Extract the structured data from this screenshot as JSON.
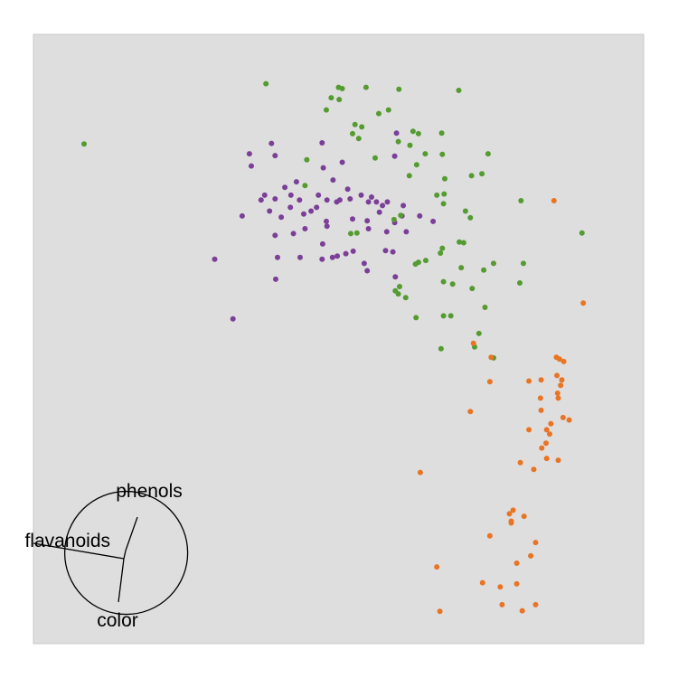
{
  "chart_data": {
    "type": "scatter",
    "title": "",
    "xlabel": "",
    "ylabel": "",
    "grid": false,
    "legend": "none",
    "xlim": [
      0,
      1
    ],
    "ylim": [
      0,
      1
    ],
    "background": "#dedede",
    "panel_border": "#c8c8c8",
    "series": [
      {
        "color": "#7b3f98",
        "points": [
          [
            0.39,
            0.821
          ],
          [
            0.396,
            0.801
          ],
          [
            0.354,
            0.804
          ],
          [
            0.473,
            0.822
          ],
          [
            0.357,
            0.784
          ],
          [
            0.592,
            0.8
          ],
          [
            0.595,
            0.838
          ],
          [
            0.506,
            0.79
          ],
          [
            0.475,
            0.781
          ],
          [
            0.491,
            0.761
          ],
          [
            0.431,
            0.758
          ],
          [
            0.412,
            0.749
          ],
          [
            0.422,
            0.736
          ],
          [
            0.467,
            0.736
          ],
          [
            0.481,
            0.728
          ],
          [
            0.379,
            0.736
          ],
          [
            0.396,
            0.73
          ],
          [
            0.342,
            0.702
          ],
          [
            0.373,
            0.728
          ],
          [
            0.436,
            0.728
          ],
          [
            0.502,
            0.728
          ],
          [
            0.519,
            0.73
          ],
          [
            0.537,
            0.736
          ],
          [
            0.515,
            0.746
          ],
          [
            0.554,
            0.733
          ],
          [
            0.562,
            0.725
          ],
          [
            0.58,
            0.725
          ],
          [
            0.606,
            0.719
          ],
          [
            0.572,
            0.719
          ],
          [
            0.549,
            0.725
          ],
          [
            0.497,
            0.725
          ],
          [
            0.464,
            0.716
          ],
          [
            0.455,
            0.71
          ],
          [
            0.421,
            0.716
          ],
          [
            0.387,
            0.71
          ],
          [
            0.406,
            0.7
          ],
          [
            0.443,
            0.705
          ],
          [
            0.48,
            0.693
          ],
          [
            0.567,
            0.708
          ],
          [
            0.604,
            0.702
          ],
          [
            0.523,
            0.697
          ],
          [
            0.547,
            0.694
          ],
          [
            0.592,
            0.691
          ],
          [
            0.633,
            0.702
          ],
          [
            0.655,
            0.693
          ],
          [
            0.396,
            0.67
          ],
          [
            0.426,
            0.673
          ],
          [
            0.445,
            0.681
          ],
          [
            0.481,
            0.685
          ],
          [
            0.549,
            0.681
          ],
          [
            0.579,
            0.676
          ],
          [
            0.611,
            0.676
          ],
          [
            0.524,
            0.644
          ],
          [
            0.577,
            0.645
          ],
          [
            0.437,
            0.634
          ],
          [
            0.473,
            0.631
          ],
          [
            0.49,
            0.634
          ],
          [
            0.512,
            0.64
          ],
          [
            0.589,
            0.643
          ],
          [
            0.542,
            0.624
          ],
          [
            0.547,
            0.612
          ],
          [
            0.498,
            0.636
          ],
          [
            0.593,
            0.602
          ],
          [
            0.297,
            0.631
          ],
          [
            0.397,
            0.598
          ],
          [
            0.474,
            0.656
          ],
          [
            0.327,
            0.533
          ],
          [
            0.4,
            0.634
          ]
        ]
      },
      {
        "color": "#549b30",
        "points": [
          [
            0.083,
            0.82
          ],
          [
            0.381,
            0.919
          ],
          [
            0.488,
            0.896
          ],
          [
            0.5,
            0.913
          ],
          [
            0.506,
            0.911
          ],
          [
            0.545,
            0.913
          ],
          [
            0.599,
            0.91
          ],
          [
            0.697,
            0.908
          ],
          [
            0.48,
            0.876
          ],
          [
            0.501,
            0.893
          ],
          [
            0.566,
            0.87
          ],
          [
            0.527,
            0.852
          ],
          [
            0.523,
            0.837
          ],
          [
            0.598,
            0.824
          ],
          [
            0.631,
            0.837
          ],
          [
            0.538,
            0.848
          ],
          [
            0.533,
            0.829
          ],
          [
            0.622,
            0.841
          ],
          [
            0.582,
            0.876
          ],
          [
            0.669,
            0.838
          ],
          [
            0.617,
            0.818
          ],
          [
            0.745,
            0.804
          ],
          [
            0.448,
            0.794
          ],
          [
            0.56,
            0.797
          ],
          [
            0.67,
            0.803
          ],
          [
            0.642,
            0.804
          ],
          [
            0.628,
            0.786
          ],
          [
            0.735,
            0.771
          ],
          [
            0.616,
            0.768
          ],
          [
            0.718,
            0.768
          ],
          [
            0.445,
            0.752
          ],
          [
            0.674,
            0.763
          ],
          [
            0.673,
            0.738
          ],
          [
            0.661,
            0.736
          ],
          [
            0.708,
            0.71
          ],
          [
            0.716,
            0.699
          ],
          [
            0.799,
            0.727
          ],
          [
            0.591,
            0.696
          ],
          [
            0.602,
            0.703
          ],
          [
            0.672,
            0.722
          ],
          [
            0.52,
            0.673
          ],
          [
            0.53,
            0.674
          ],
          [
            0.899,
            0.674
          ],
          [
            0.705,
            0.658
          ],
          [
            0.698,
            0.659
          ],
          [
            0.67,
            0.649
          ],
          [
            0.667,
            0.641
          ],
          [
            0.643,
            0.629
          ],
          [
            0.631,
            0.626
          ],
          [
            0.626,
            0.623
          ],
          [
            0.803,
            0.624
          ],
          [
            0.754,
            0.624
          ],
          [
            0.701,
            0.617
          ],
          [
            0.738,
            0.613
          ],
          [
            0.687,
            0.59
          ],
          [
            0.672,
            0.594
          ],
          [
            0.797,
            0.592
          ],
          [
            0.6,
            0.586
          ],
          [
            0.593,
            0.579
          ],
          [
            0.61,
            0.568
          ],
          [
            0.719,
            0.583
          ],
          [
            0.74,
            0.552
          ],
          [
            0.672,
            0.538
          ],
          [
            0.684,
            0.538
          ],
          [
            0.627,
            0.535
          ],
          [
            0.73,
            0.509
          ],
          [
            0.668,
            0.484
          ],
          [
            0.723,
            0.487
          ],
          [
            0.754,
            0.469
          ],
          [
            0.598,
            0.574
          ]
        ]
      },
      {
        "color": "#e87424",
        "points": [
          [
            0.853,
            0.727
          ],
          [
            0.901,
            0.559
          ],
          [
            0.721,
            0.493
          ],
          [
            0.75,
            0.47
          ],
          [
            0.857,
            0.47
          ],
          [
            0.862,
            0.467
          ],
          [
            0.869,
            0.463
          ],
          [
            0.748,
            0.43
          ],
          [
            0.812,
            0.431
          ],
          [
            0.866,
            0.433
          ],
          [
            0.832,
            0.433
          ],
          [
            0.858,
            0.44
          ],
          [
            0.716,
            0.381
          ],
          [
            0.832,
            0.383
          ],
          [
            0.859,
            0.411
          ],
          [
            0.831,
            0.403
          ],
          [
            0.86,
            0.403
          ],
          [
            0.841,
            0.351
          ],
          [
            0.848,
            0.361
          ],
          [
            0.878,
            0.367
          ],
          [
            0.846,
            0.344
          ],
          [
            0.833,
            0.321
          ],
          [
            0.841,
            0.304
          ],
          [
            0.798,
            0.297
          ],
          [
            0.86,
            0.301
          ],
          [
            0.634,
            0.281
          ],
          [
            0.783,
            0.201
          ],
          [
            0.783,
            0.198
          ],
          [
            0.804,
            0.209
          ],
          [
            0.78,
            0.213
          ],
          [
            0.748,
            0.177
          ],
          [
            0.815,
            0.144
          ],
          [
            0.792,
            0.132
          ],
          [
            0.736,
            0.1
          ],
          [
            0.792,
            0.098
          ],
          [
            0.823,
            0.064
          ],
          [
            0.661,
            0.126
          ],
          [
            0.823,
            0.166
          ],
          [
            0.765,
            0.093
          ],
          [
            0.666,
            0.053
          ],
          [
            0.801,
            0.054
          ],
          [
            0.768,
            0.064
          ],
          [
            0.864,
            0.424
          ],
          [
            0.868,
            0.371
          ],
          [
            0.786,
            0.219
          ],
          [
            0.84,
            0.329
          ],
          [
            0.82,
            0.286
          ],
          [
            0.812,
            0.351
          ]
        ]
      }
    ],
    "biplot": {
      "center": [
        0.152,
        0.149
      ],
      "radius": 0.1,
      "vectors": [
        {
          "label": "phenols",
          "angle_deg": 67,
          "length": 1.0
        },
        {
          "label": "flavanoids",
          "angle_deg": 168,
          "length": 1.15
        },
        {
          "label": "color",
          "angle_deg": 266,
          "length": 1.07
        }
      ]
    }
  }
}
